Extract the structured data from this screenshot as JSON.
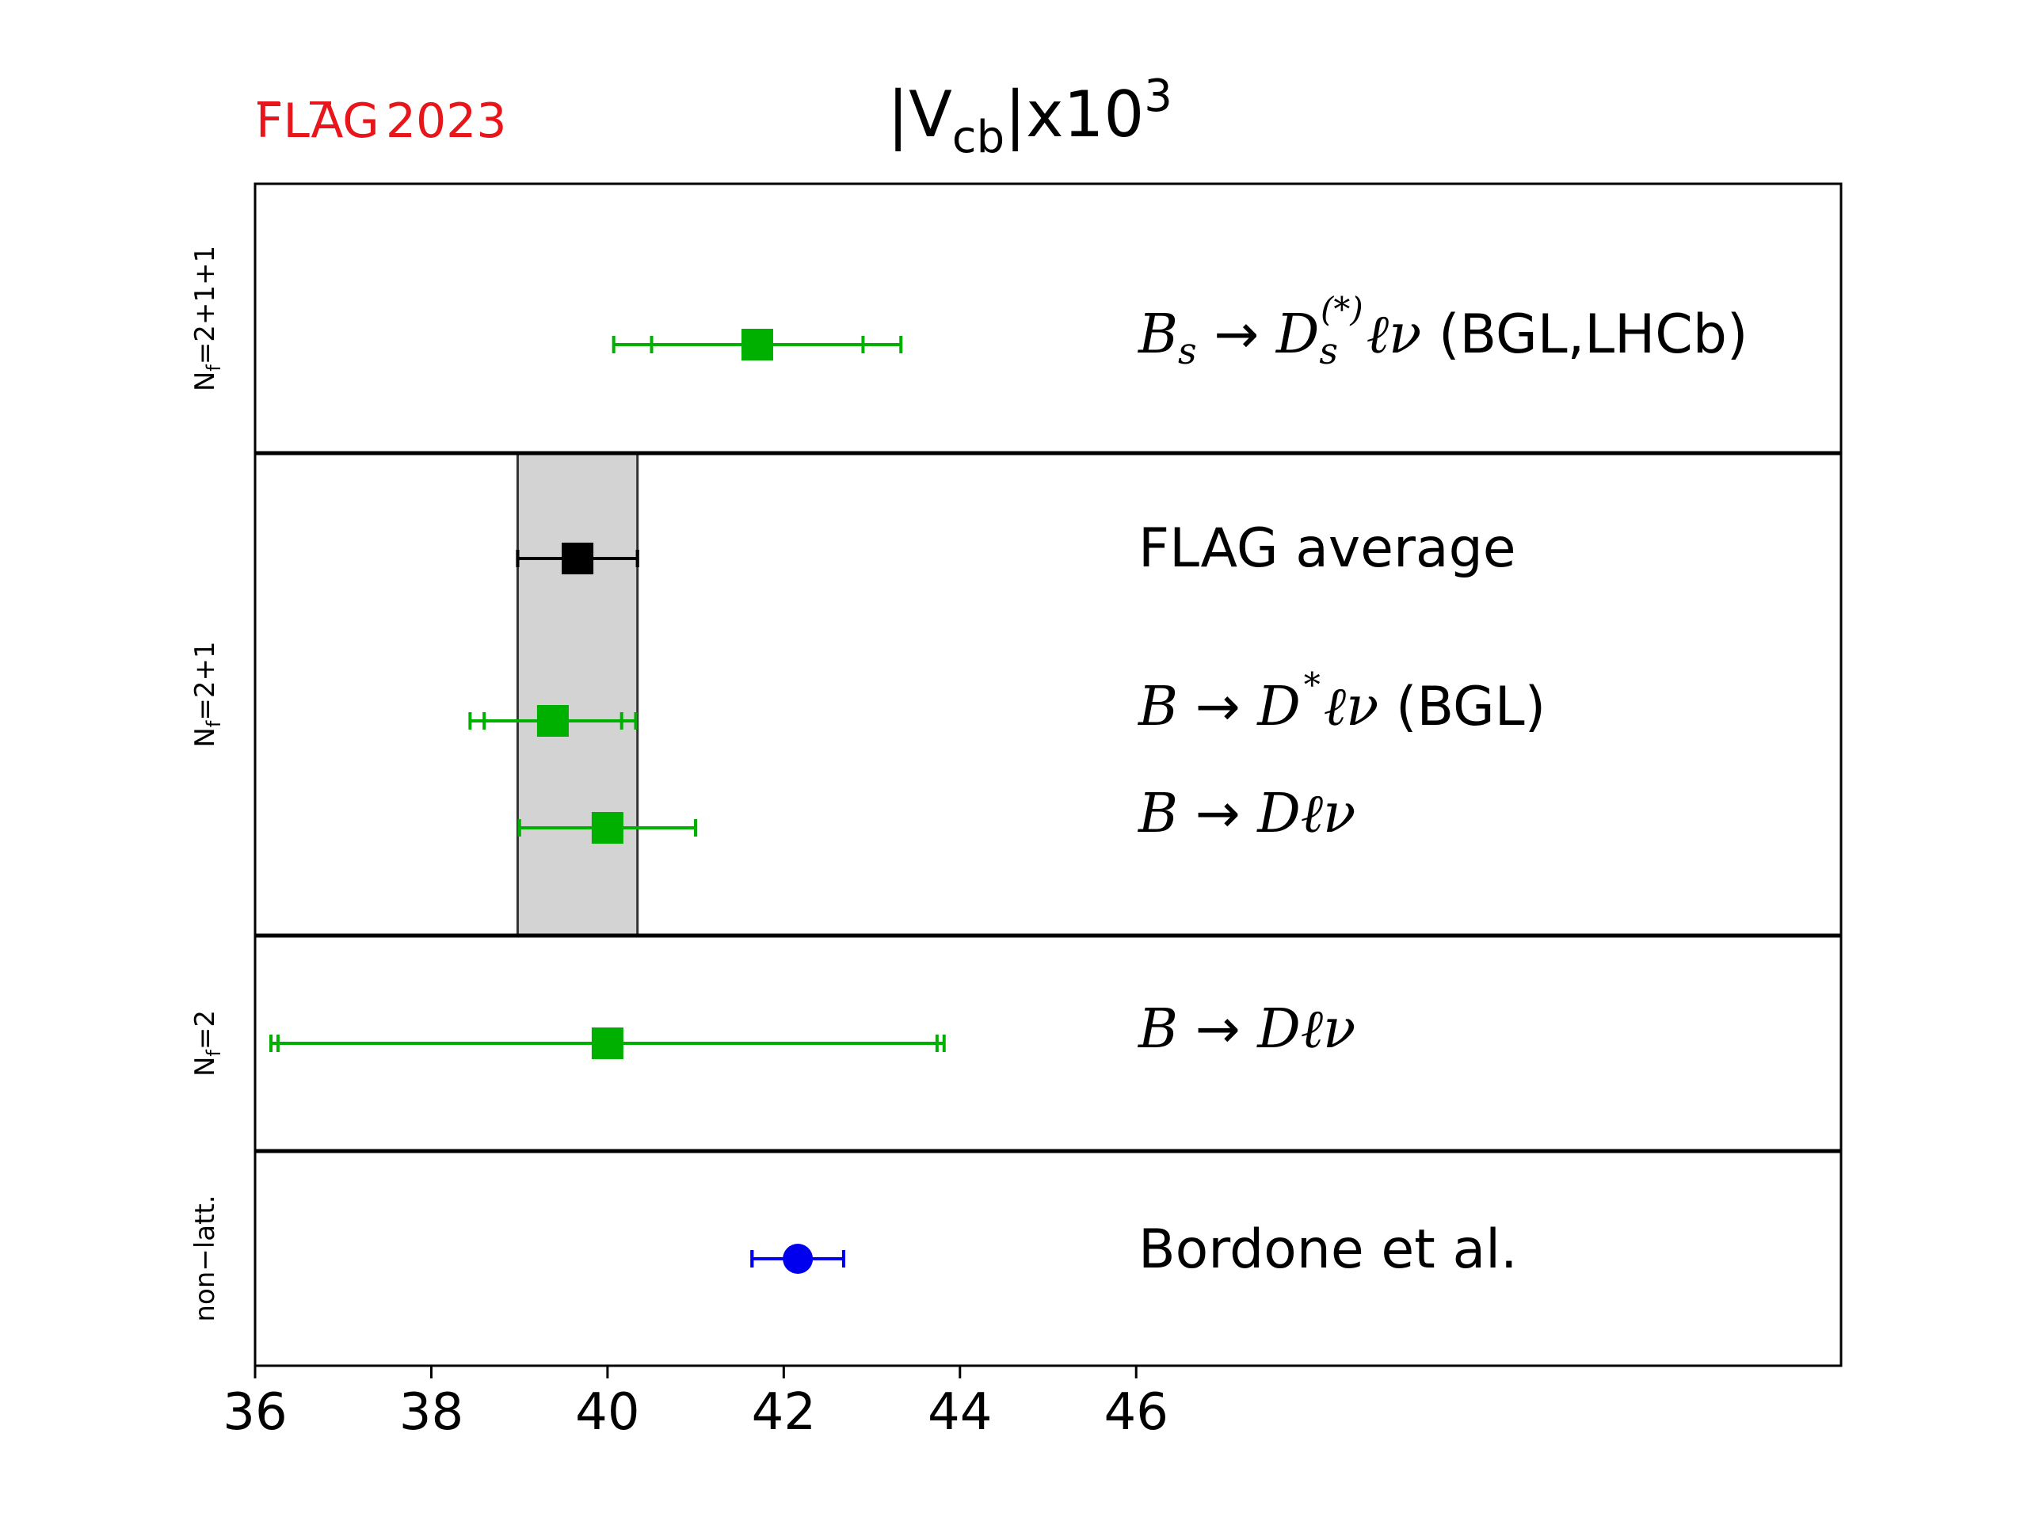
{
  "logo": {
    "flag": "FLAG",
    "year": "2023",
    "color": "#e8161b"
  },
  "title": {
    "main": "|V",
    "sub": "cb",
    "after": "|x10",
    "sup": "3"
  },
  "chart_data": {
    "type": "scatter",
    "xlim": [
      36,
      54
    ],
    "xticks": [
      "36",
      "38",
      "40",
      "42",
      "44",
      "46"
    ],
    "xtick_values": [
      36,
      38,
      40,
      42,
      44,
      46
    ],
    "grid": false,
    "band": {
      "lo": 38.98,
      "hi": 40.34,
      "color": "#d3d3d3"
    },
    "panels": [
      {
        "label": "N_f = 2+1+1",
        "label_base": "N",
        "label_sub": "f",
        "label_rest": "=2+1+1"
      },
      {
        "label": "N_f = 2+1",
        "label_base": "N",
        "label_sub": "f",
        "label_rest": "=2+1"
      },
      {
        "label": "N_f = 2",
        "label_base": "N",
        "label_sub": "f",
        "label_rest": "=2"
      },
      {
        "label": "non-latt.",
        "label_base": "non−latt.",
        "label_sub": "",
        "label_rest": ""
      }
    ],
    "points": [
      {
        "panel": 0,
        "value": 41.7,
        "err_inner": [
          40.5,
          42.9
        ],
        "err_outer": [
          40.07,
          43.33
        ],
        "marker": "square",
        "color": "#00b000",
        "label": "Bs → Ds(*) ℓν (BGL,LHCb)",
        "lab_B": "B",
        "lab_Bsub": "s",
        "lab_arrow": "→",
        "lab_D": "D",
        "lab_Dsub": "s",
        "lab_Dsup": "(*)",
        "lab_lnu": "ℓν",
        "lab_tail": " (BGL,LHCb)"
      },
      {
        "panel": 1,
        "value": 39.66,
        "err_inner": [
          38.98,
          40.34
        ],
        "err_outer": [
          38.98,
          40.34
        ],
        "marker": "square",
        "color": "#000000",
        "label": "FLAG average",
        "lab_text": "FLAG average"
      },
      {
        "panel": 1,
        "value": 39.38,
        "err_inner": [
          38.6,
          40.16
        ],
        "err_outer": [
          38.44,
          40.32
        ],
        "marker": "square",
        "color": "#00b000",
        "label": "B → D* ℓν (BGL)",
        "lab_B": "B",
        "lab_arrow": "→",
        "lab_D": "D",
        "lab_Dsup": "*",
        "lab_lnu": "ℓν",
        "lab_tail": " (BGL)"
      },
      {
        "panel": 1,
        "value": 40.0,
        "err_inner": [
          39.0,
          41.0
        ],
        "err_outer": [
          39.0,
          41.0
        ],
        "marker": "square",
        "color": "#00b000",
        "label": "B → Dℓν",
        "lab_B": "B",
        "lab_arrow": "→",
        "lab_D": "Dℓν"
      },
      {
        "panel": 2,
        "value": 40.0,
        "err_inner": [
          36.26,
          43.74
        ],
        "err_outer": [
          36.18,
          43.82
        ],
        "marker": "square",
        "color": "#00b000",
        "label": "B → Dℓν",
        "lab_B": "B",
        "lab_arrow": "→",
        "lab_D": "Dℓν"
      },
      {
        "panel": 3,
        "value": 42.16,
        "err_inner": [
          41.64,
          42.68
        ],
        "err_outer": [
          41.64,
          42.68
        ],
        "marker": "circle",
        "color": "#0000ee",
        "label": "Bordone et al.",
        "lab_text": "Bordone et al."
      }
    ]
  }
}
